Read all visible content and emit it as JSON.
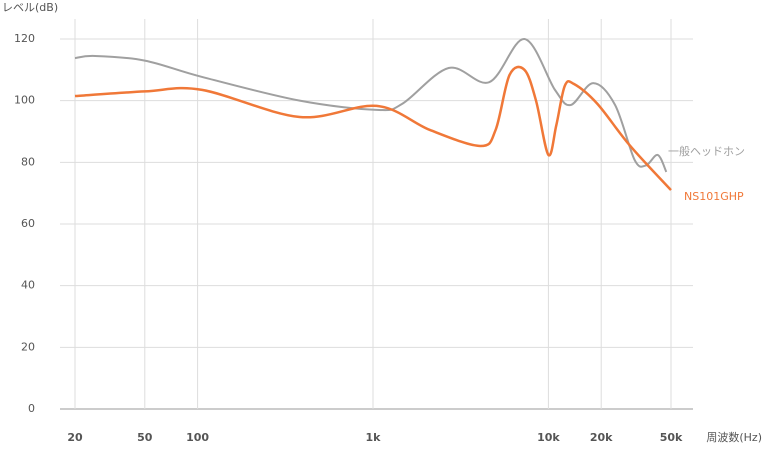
{
  "chart_data": {
    "type": "line",
    "y_label": "レベル(dB)",
    "x_label": "周波数(Hz)",
    "x_scale": "log",
    "xlim": [
      20,
      50000
    ],
    "ylim": [
      0,
      120
    ],
    "xticks": [
      20,
      50,
      100,
      {
        "value": 1000,
        "label": "1k"
      },
      {
        "value": 10000,
        "label": "10k"
      },
      {
        "value": 20000,
        "label": "20k"
      },
      {
        "value": 50000,
        "label": "50k"
      }
    ],
    "yticks": [
      0,
      20,
      40,
      60,
      80,
      100,
      120
    ],
    "grid": true,
    "series": [
      {
        "name": "一般ヘッドホン",
        "color": "#a0a0a0",
        "x": [
          20,
          26,
          50,
          106,
          382,
          1050,
          1470,
          2700,
          4600,
          7300,
          10900,
          13400,
          18000,
          24000,
          31000,
          36000,
          42000,
          47000
        ],
        "values": [
          113.8,
          114.5,
          113,
          107.7,
          100,
          97,
          99,
          110.6,
          106,
          120,
          103.5,
          98.6,
          105.7,
          98.6,
          80.8,
          79,
          82.4,
          76.9
        ]
      },
      {
        "name": "NS101GHP",
        "color": "#f07838",
        "x": [
          20,
          50,
          106,
          382,
          1050,
          2110,
          4100,
          5000,
          6000,
          7300,
          8500,
          10000,
          11100,
          12400,
          14000,
          19000,
          29000,
          50000
        ],
        "values": [
          101.5,
          103,
          103.5,
          94.7,
          98.3,
          90.5,
          85.3,
          90.5,
          108.3,
          110,
          100,
          82.4,
          92.1,
          104.8,
          105.4,
          99,
          85.6,
          71
        ]
      }
    ]
  }
}
